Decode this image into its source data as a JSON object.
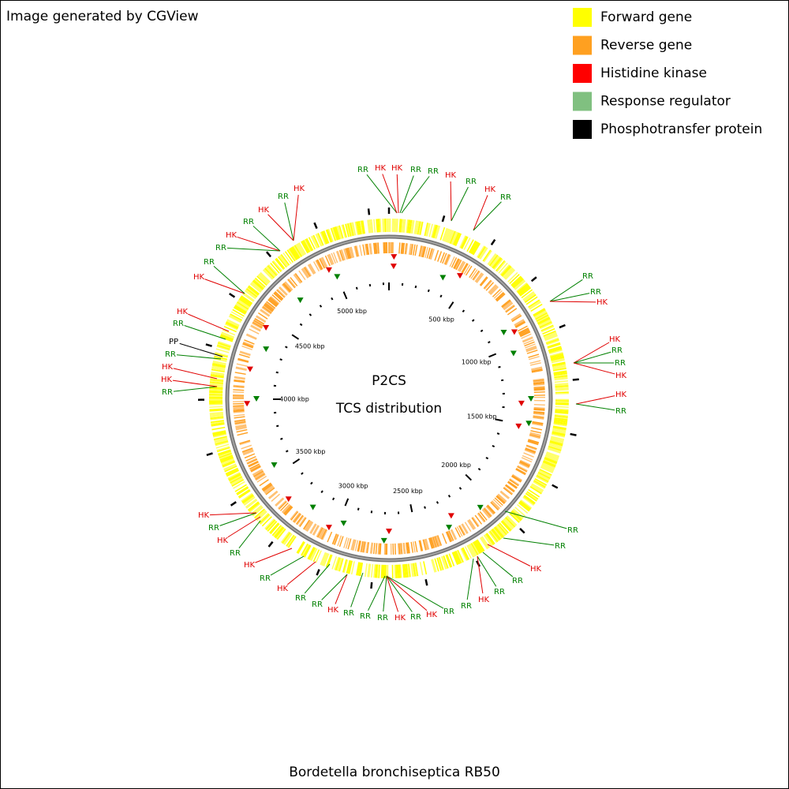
{
  "header": {
    "credit": "Image generated by CGView"
  },
  "legend": [
    {
      "label": "Forward gene",
      "color": "#ffff00"
    },
    {
      "label": "Reverse gene",
      "color": "#ffa020"
    },
    {
      "label": "Histidine kinase",
      "color": "#ff0000"
    },
    {
      "label": "Response regulator",
      "color": "#80c080"
    },
    {
      "label": "Phosphotransfer protein",
      "color": "#000000"
    }
  ],
  "center": {
    "title": "P2CS",
    "subtitle": "TCS distribution"
  },
  "axis": {
    "labels": [
      "500 kbp",
      "1000 kbp",
      "1500 kbp",
      "2000 kbp",
      "2500 kbp",
      "3000 kbp",
      "3500 kbp",
      "4000 kbp",
      "4500 kbp",
      "5000 kbp"
    ]
  },
  "features": [
    {
      "label": "RR",
      "color": "#008000"
    },
    {
      "label": "HK",
      "color": "#e00000"
    },
    {
      "label": "HK",
      "color": "#e00000"
    },
    {
      "label": "RR",
      "color": "#008000"
    },
    {
      "label": "RR",
      "color": "#008000"
    },
    {
      "label": "HK",
      "color": "#e00000"
    },
    {
      "label": "RR",
      "color": "#008000"
    },
    {
      "label": "HK",
      "color": "#e00000"
    },
    {
      "label": "RR",
      "color": "#008000"
    },
    {
      "label": "RR",
      "color": "#008000"
    },
    {
      "label": "RR",
      "color": "#008000"
    },
    {
      "label": "HK",
      "color": "#e00000"
    },
    {
      "label": "HK",
      "color": "#e00000"
    },
    {
      "label": "RR",
      "color": "#008000"
    },
    {
      "label": "RR",
      "color": "#008000"
    },
    {
      "label": "HK",
      "color": "#e00000"
    },
    {
      "label": "HK",
      "color": "#e00000"
    },
    {
      "label": "RR",
      "color": "#008000"
    },
    {
      "label": "RR",
      "color": "#008000"
    },
    {
      "label": "RR",
      "color": "#008000"
    },
    {
      "label": "HK",
      "color": "#e00000"
    },
    {
      "label": "RR",
      "color": "#008000"
    },
    {
      "label": "RR",
      "color": "#008000"
    },
    {
      "label": "HK",
      "color": "#e00000"
    },
    {
      "label": "RR",
      "color": "#008000"
    },
    {
      "label": "RR",
      "color": "#008000"
    },
    {
      "label": "HK",
      "color": "#e00000"
    },
    {
      "label": "RR",
      "color": "#008000"
    },
    {
      "label": "HK",
      "color": "#e00000"
    },
    {
      "label": "RR",
      "color": "#008000"
    },
    {
      "label": "RR",
      "color": "#008000"
    },
    {
      "label": "RR",
      "color": "#008000"
    },
    {
      "label": "HK",
      "color": "#e00000"
    },
    {
      "label": "RR",
      "color": "#008000"
    },
    {
      "label": "RR",
      "color": "#008000"
    },
    {
      "label": "HK",
      "color": "#e00000"
    },
    {
      "label": "RR",
      "color": "#008000"
    },
    {
      "label": "HK",
      "color": "#e00000"
    },
    {
      "label": "RR",
      "color": "#008000"
    },
    {
      "label": "HK",
      "color": "#e00000"
    },
    {
      "label": "RR",
      "color": "#008000"
    },
    {
      "label": "HK",
      "color": "#e00000"
    },
    {
      "label": "RR",
      "color": "#008000"
    },
    {
      "label": "HK",
      "color": "#e00000"
    },
    {
      "label": "HK",
      "color": "#e00000"
    },
    {
      "label": "RR",
      "color": "#008000"
    },
    {
      "label": "PP",
      "color": "#000000"
    },
    {
      "label": "RR",
      "color": "#008000"
    },
    {
      "label": "HK",
      "color": "#e00000"
    },
    {
      "label": "HK",
      "color": "#e00000"
    },
    {
      "label": "RR",
      "color": "#008000"
    },
    {
      "label": "RR",
      "color": "#008000"
    },
    {
      "label": "HK",
      "color": "#e00000"
    },
    {
      "label": "RR",
      "color": "#008000"
    },
    {
      "label": "HK",
      "color": "#e00000"
    },
    {
      "label": "RR",
      "color": "#008000"
    },
    {
      "label": "HK",
      "color": "#e00000"
    }
  ],
  "footer": {
    "organism": "Bordetella bronchiseptica RB50"
  }
}
